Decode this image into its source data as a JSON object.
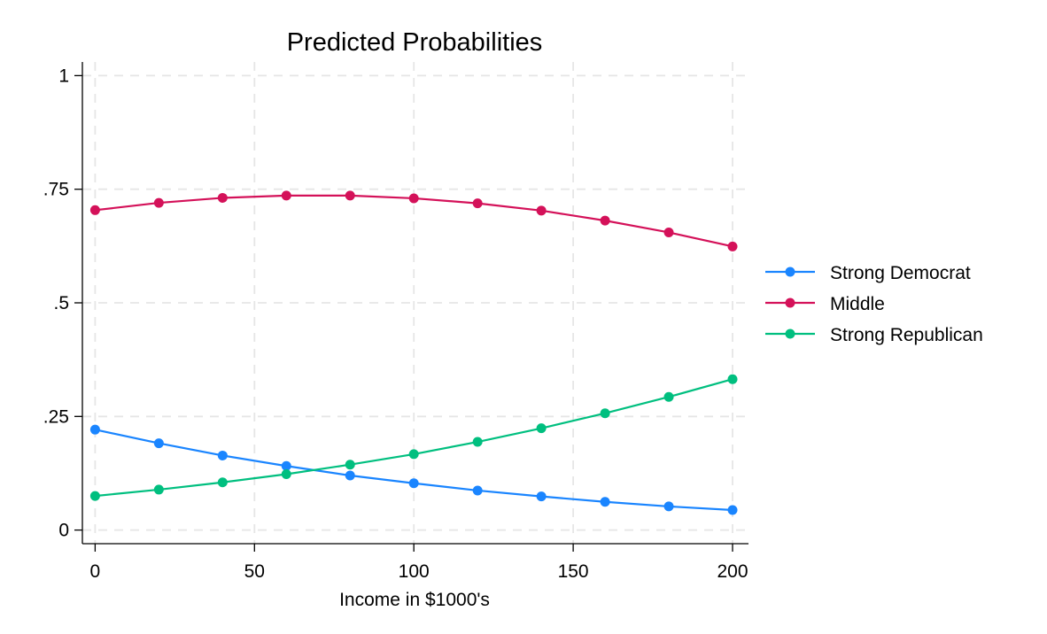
{
  "chart_data": {
    "type": "line",
    "title": "Predicted Probabilities",
    "xlabel": "Income in $1000's",
    "ylabel": "",
    "xlim": [
      -4,
      205
    ],
    "ylim": [
      -0.03,
      1.03
    ],
    "x_ticks": [
      {
        "value": 0,
        "label": "0"
      },
      {
        "value": 50,
        "label": "50"
      },
      {
        "value": 100,
        "label": "100"
      },
      {
        "value": 150,
        "label": "150"
      },
      {
        "value": 200,
        "label": "200"
      }
    ],
    "y_ticks": [
      {
        "value": 0,
        "label": "0"
      },
      {
        "value": 0.25,
        "label": ".25"
      },
      {
        "value": 0.5,
        "label": ".5"
      },
      {
        "value": 0.75,
        "label": ".75"
      },
      {
        "value": 1,
        "label": "1"
      }
    ],
    "grid": true,
    "grid_style": "dashed",
    "legend_position": "right",
    "x": [
      0,
      20,
      40,
      60,
      80,
      100,
      120,
      140,
      160,
      180,
      200
    ],
    "series": [
      {
        "name": "Strong Democrat",
        "color": "#1a85ff",
        "values": [
          0.221,
          0.191,
          0.164,
          0.141,
          0.12,
          0.103,
          0.087,
          0.074,
          0.062,
          0.052,
          0.044
        ]
      },
      {
        "name": "Middle",
        "color": "#d41159",
        "values": [
          0.704,
          0.72,
          0.731,
          0.736,
          0.736,
          0.73,
          0.719,
          0.703,
          0.681,
          0.655,
          0.624
        ]
      },
      {
        "name": "Strong Republican",
        "color": "#00bf7f",
        "values": [
          0.075,
          0.089,
          0.105,
          0.123,
          0.144,
          0.167,
          0.194,
          0.224,
          0.257,
          0.293,
          0.332
        ]
      }
    ]
  }
}
